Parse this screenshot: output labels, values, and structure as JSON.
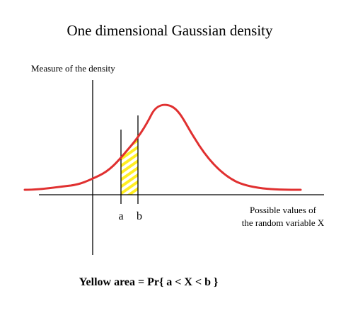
{
  "title": "One dimensional Gaussian density",
  "y_axis_label": "Measure of the density",
  "x_axis_label": {
    "line1": "Possible values of",
    "line2": "the random variable X"
  },
  "markers": {
    "a": "a",
    "b": "b"
  },
  "caption": "Yellow area = Pr{ a < X < b }"
}
